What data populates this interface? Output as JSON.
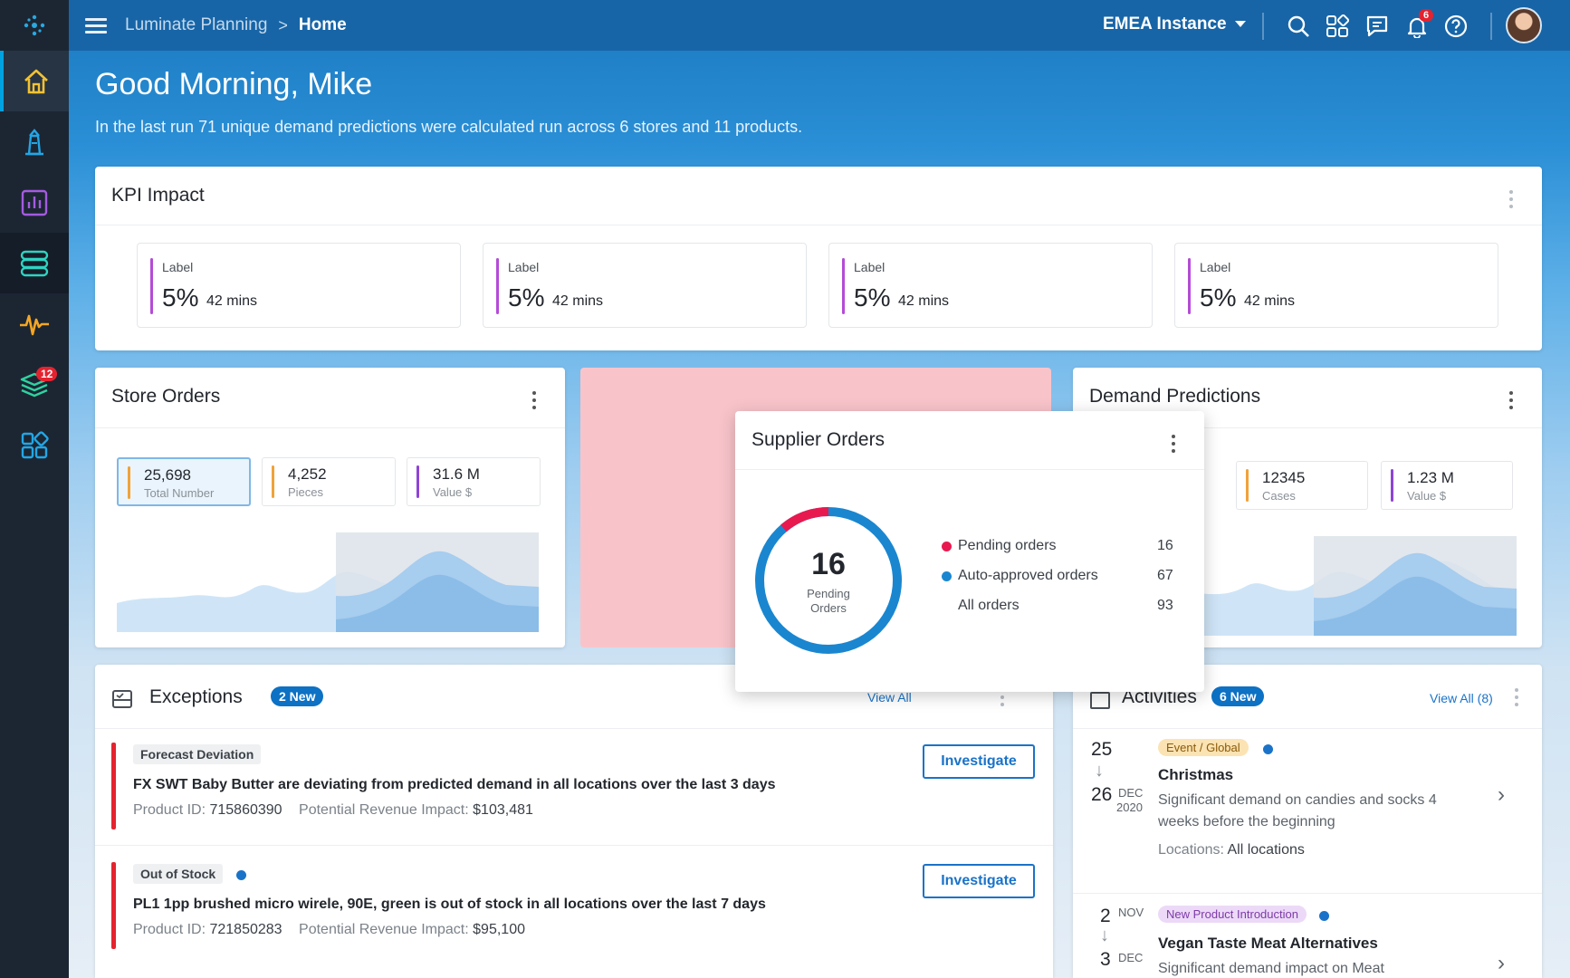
{
  "topbar": {
    "breadcrumb_parent": "Luminate Planning",
    "breadcrumb_current": "Home",
    "instance_label": "EMEA Instance",
    "notification_count": "6"
  },
  "sidebar": {
    "items": [
      {
        "icon": "home-icon",
        "active": true
      },
      {
        "icon": "lighthouse-icon"
      },
      {
        "icon": "bar-chart-icon"
      },
      {
        "icon": "database-icon"
      },
      {
        "icon": "pulse-icon"
      },
      {
        "icon": "layers-icon",
        "badge": "12"
      },
      {
        "icon": "apps-grid-icon"
      }
    ]
  },
  "greeting": {
    "title": "Good Morning, Mike",
    "subtitle": "In the last run 71 unique demand predictions were calculated run across 6 stores and 11 products."
  },
  "kpi": {
    "title": "KPI Impact",
    "cards": [
      {
        "label": "Label",
        "value": "5%",
        "time": "42 mins"
      },
      {
        "label": "Label",
        "value": "5%",
        "time": "42 mins"
      },
      {
        "label": "Label",
        "value": "5%",
        "time": "42 mins"
      },
      {
        "label": "Label",
        "value": "5%",
        "time": "42 mins"
      }
    ]
  },
  "store_orders": {
    "title": "Store Orders",
    "chips": [
      {
        "value": "25,698",
        "sub": "Total Number",
        "color": "#f0a23b"
      },
      {
        "value": "4,252",
        "sub": "Pieces",
        "color": "#f0a23b"
      },
      {
        "value": "31.6 M",
        "sub": "Value $",
        "color": "#8e44d6"
      }
    ]
  },
  "supplier_orders": {
    "title": "Supplier Orders",
    "center_value": "16",
    "center_label_1": "Pending",
    "center_label_2": "Orders",
    "legend": [
      {
        "label": "Pending orders",
        "value": "16",
        "color": "#e8194f"
      },
      {
        "label": "Auto-approved orders",
        "value": "67",
        "color": "#1a86d0"
      },
      {
        "label": "All orders",
        "value": "93"
      }
    ]
  },
  "demand_predictions": {
    "title": "Demand Predictions",
    "chips": [
      {
        "value": "12345",
        "sub": "Cases",
        "color": "#f0a23b"
      },
      {
        "value": "1.23 M",
        "sub": "Value $",
        "color": "#8e44d6"
      }
    ]
  },
  "exceptions": {
    "title": "Exceptions",
    "badge": "2 New",
    "view_all": "View All",
    "rows": [
      {
        "tag": "Forecast Deviation",
        "title": "FX SWT Baby Butter are deviating from predicted demand in all locations over the last 3 days",
        "product_label": "Product ID:",
        "product_id": "715860390",
        "impact_label": "Potential Revenue Impact:",
        "impact": "$103,481",
        "action": "Investigate"
      },
      {
        "tag": "Out of Stock",
        "title": "PL1 1pp brushed micro wirele, 90E, green is out of stock in all locations over the last 7 days",
        "product_label": "Product ID:",
        "product_id": "721850283",
        "impact_label": "Potential Revenue Impact:",
        "impact": "$95,100",
        "action": "Investigate"
      }
    ]
  },
  "activities": {
    "title": "Activities",
    "badge": "6 New",
    "view_all": "View All (8)",
    "items": [
      {
        "start_day": "25",
        "end_day": "26",
        "end_month": "DEC",
        "end_year": "2020",
        "tag": "Event / Global",
        "title": "Christmas",
        "desc": "Significant demand on candies and socks 4 weeks before the beginning",
        "loc_label": "Locations:",
        "loc": "All locations"
      },
      {
        "start_day": "2",
        "start_month": "NOV",
        "end_day": "3",
        "end_month": "DEC",
        "tag": "New Product Introduction",
        "title": "Vegan Taste Meat Alternatives",
        "desc": "Significant demand impact on Meat"
      }
    ]
  }
}
